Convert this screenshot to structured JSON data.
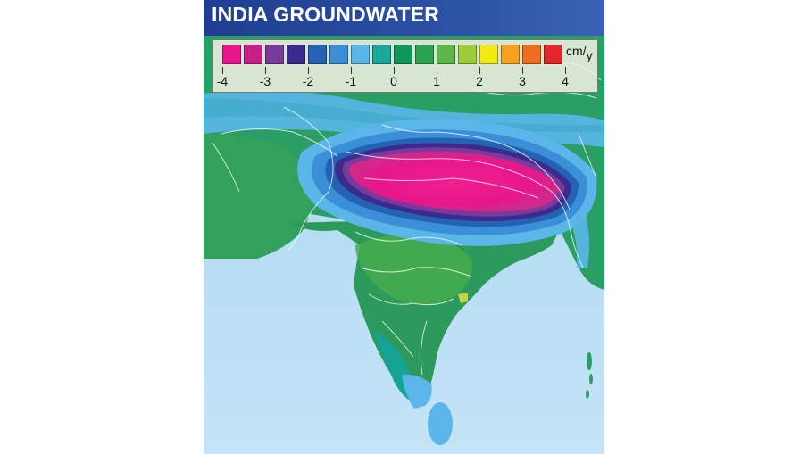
{
  "title": "INDIA GROUNDWATER",
  "legend": {
    "unit_main": "cm",
    "unit_sep": "/",
    "unit_sub": "y",
    "swatches": [
      "#e8168c",
      "#c81f86",
      "#7a3a9b",
      "#3a2b8c",
      "#2462b4",
      "#3a8fd6",
      "#5ab6e8",
      "#1aa89a",
      "#10955a",
      "#2ba350",
      "#5db748",
      "#9ccc3c",
      "#f2ea10",
      "#f6a21c",
      "#f06c23",
      "#e3262a"
    ],
    "ticks": [
      "-4",
      "-3",
      "-2",
      "-1",
      "0",
      "1",
      "2",
      "3",
      "4"
    ]
  },
  "colors": {
    "ocean": "#b6dcf2",
    "ocean_edge": "#84c7ee",
    "border_lines": "#ffffff"
  }
}
